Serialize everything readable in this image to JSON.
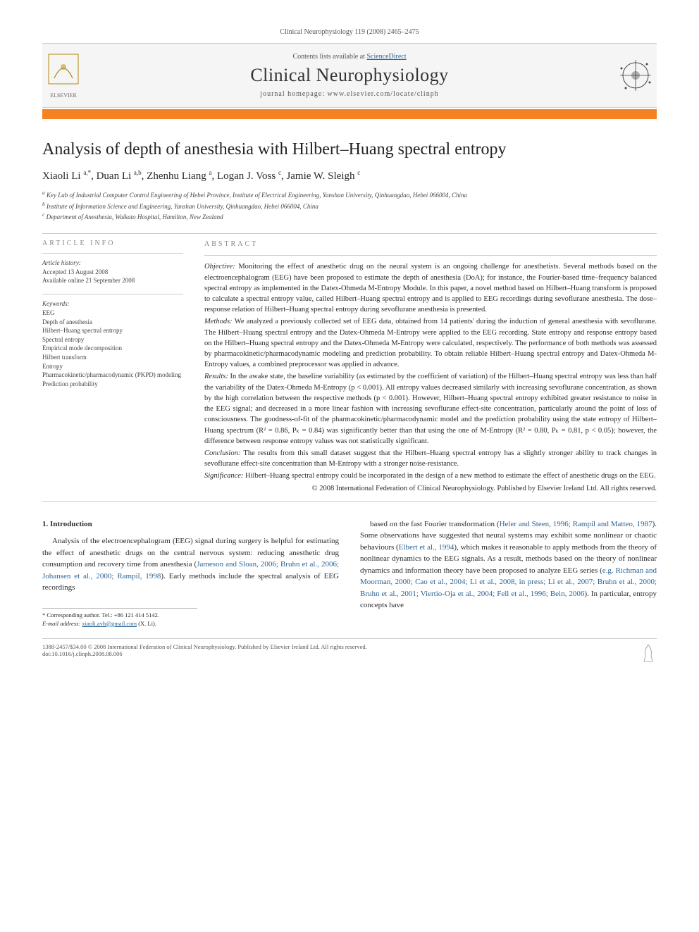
{
  "header": {
    "citation": "Clinical Neurophysiology 119 (2008) 2465–2475",
    "contents_prefix": "Contents lists available at ",
    "contents_link": "ScienceDirect",
    "journal": "Clinical Neurophysiology",
    "homepage_prefix": "journal homepage: ",
    "homepage_url": "www.elsevier.com/locate/clinph",
    "publisher_name": "ELSEVIER"
  },
  "title": "Analysis of depth of anesthesia with Hilbert–Huang spectral entropy",
  "authors_html": "Xiaoli Li <sup>a,*</sup>, Duan Li <sup>a,b</sup>, Zhenhu Liang <sup>a</sup>, Logan J. Voss <sup>c</sup>, Jamie W. Sleigh <sup>c</sup>",
  "affiliations": [
    "a Key Lab of Industrial Computer Control Engineering of Hebei Province, Institute of Electrical Engineering, Yanshan University, Qinhuangdao, Hebei 066004, China",
    "b Institute of Information Science and Engineering, Yanshan University, Qinhuangdao, Hebei 066004, China",
    "c Department of Anesthesia, Waikato Hospital, Hamilton, New Zealand"
  ],
  "article_info": {
    "heading": "ARTICLE INFO",
    "history_label": "Article history:",
    "history": [
      "Accepted 13 August 2008",
      "Available online 21 September 2008"
    ],
    "keywords_label": "Keywords:",
    "keywords": [
      "EEG",
      "Depth of anesthesia",
      "Hilbert–Huang spectral entropy",
      "Spectral entropy",
      "Empirical mode decomposition",
      "Hilbert transform",
      "Entropy",
      "Pharmacokinetic/pharmacodynamic (PKPD) modeling",
      "Prediction probability"
    ]
  },
  "abstract": {
    "heading": "ABSTRACT",
    "objective_label": "Objective:",
    "objective": "Monitoring the effect of anesthetic drug on the neural system is an ongoing challenge for anesthetists. Several methods based on the electroencephalogram (EEG) have been proposed to estimate the depth of anesthesia (DoA); for instance, the Fourier-based time–frequency balanced spectral entropy as implemented in the Datex-Ohmeda M-Entropy Module. In this paper, a novel method based on Hilbert–Huang transform is proposed to calculate a spectral entropy value, called Hilbert–Huang spectral entropy and is applied to EEG recordings during sevoflurane anesthesia. The dose–response relation of Hilbert–Huang spectral entropy during sevoflurane anesthesia is presented.",
    "methods_label": "Methods:",
    "methods": "We analyzed a previously collected set of EEG data, obtained from 14 patients' during the induction of general anesthesia with sevoflurane. The Hilbert–Huang spectral entropy and the Datex-Ohmeda M-Entropy were applied to the EEG recording. State entropy and response entropy based on the Hilbert–Huang spectral entropy and the Datex-Ohmeda M-Entropy were calculated, respectively. The performance of both methods was assessed by pharmacokinetic/pharmacodynamic modeling and prediction probability. To obtain reliable Hilbert–Huang spectral entropy and Datex-Ohmeda M-Entropy values, a combined preprocessor was applied in advance.",
    "results_label": "Results:",
    "results": "In the awake state, the baseline variability (as estimated by the coefficient of variation) of the Hilbert–Huang spectral entropy was less than half the variability of the Datex-Ohmeda M-Entropy (p < 0.001). All entropy values decreased similarly with increasing sevoflurane concentration, as shown by the high correlation between the respective methods (p < 0.001). However, Hilbert–Huang spectral entropy exhibited greater resistance to noise in the EEG signal; and decreased in a more linear fashion with increasing sevoflurane effect-site concentration, particularly around the point of loss of consciousness. The goodness-of-fit of the pharmacokinetic/pharmacodynamic model and the prediction probability using the state entropy of Hilbert–Huang spectrum (R² = 0.86, Pₖ = 0.84) was significantly better than that using the one of M-Entropy (R² = 0.80, Pₖ = 0.81, p < 0.05); however, the difference between response entropy values was not statistically significant.",
    "conclusion_label": "Conclusion:",
    "conclusion": "The results from this small dataset suggest that the Hilbert–Huang spectral entropy has a slightly stronger ability to track changes in sevoflurane effect-site concentration than M-Entropy with a stronger noise-resistance.",
    "significance_label": "Significance:",
    "significance": "Hilbert–Huang spectral entropy could be incorporated in the design of a new method to estimate the effect of anesthetic drugs on the EEG.",
    "copyright": "© 2008 International Federation of Clinical Neurophysiology. Published by Elsevier Ireland Ltd. All rights reserved."
  },
  "body": {
    "section_num": "1.",
    "section_title": "Introduction",
    "col1": "Analysis of the electroencephalogram (EEG) signal during surgery is helpful for estimating the effect of anesthetic drugs on the central nervous system: reducing anesthetic drug consumption and recovery time from anesthesia (Jameson and Sloan, 2006; Bruhn et al., 2006; Johansen et al., 2000; Rampil, 1998). Early methods include the spectral analysis of EEG recordings",
    "col2": "based on the fast Fourier transformation (Heler and Steen, 1996; Rampil and Matteo, 1987). Some observations have suggested that neural systems may exhibit some nonlinear or chaotic behaviours (Elbert et al., 1994), which makes it reasonable to apply methods from the theory of nonlinear dynamics to the EEG signals. As a result, methods based on the theory of nonlinear dynamics and information theory have been proposed to analyze EEG series (e.g. Richman and Moorman, 2000; Cao et al., 2004; Li et al., 2008, in press; Li et al., 2007; Bruhn et al., 2000; Bruhn et al., 2001; Viertio-Oja et al., 2004; Fell et al., 1996; Bein, 2006). In particular, entropy concepts have"
  },
  "footnote": {
    "corr": "* Corresponding author. Tel.: +86 121 414 5142.",
    "email_label": "E-mail address:",
    "email": "xiaoli.avh@gmail.com",
    "email_suffix": "(X. Li)."
  },
  "footer": {
    "left1": "1388-2457/$34.00 © 2008 International Federation of Clinical Neurophysiology. Published by Elsevier Ireland Ltd. All rights reserved.",
    "left2": "doi:10.1016/j.clinph.2008.08.006"
  },
  "colors": {
    "accent": "#f58220",
    "link": "#2a6496",
    "text": "#2a2a2a",
    "muted": "#888"
  }
}
